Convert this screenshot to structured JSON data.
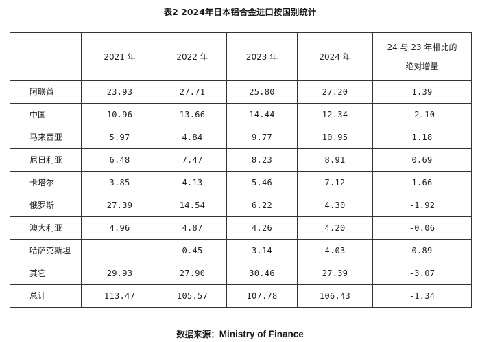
{
  "title": "表2 2024年日本铝合金进口按国别统计",
  "table": {
    "headers": [
      "",
      "2021 年",
      "2022 年",
      "2023 年",
      "2024 年"
    ],
    "change_header_line1": "24 与 23 年相比的",
    "change_header_line2": "绝对增量",
    "rows": [
      {
        "name": "阿联酋",
        "values": [
          "23.93",
          "27.71",
          "25.80",
          "27.20",
          "1.39"
        ]
      },
      {
        "name": "中国",
        "values": [
          "10.96",
          "13.66",
          "14.44",
          "12.34",
          "-2.10"
        ]
      },
      {
        "name": "马来西亚",
        "values": [
          "5.97",
          "4.84",
          "9.77",
          "10.95",
          "1.18"
        ]
      },
      {
        "name": "尼日利亚",
        "values": [
          "6.48",
          "7.47",
          "8.23",
          "8.91",
          "0.69"
        ]
      },
      {
        "name": "卡塔尔",
        "values": [
          "3.85",
          "4.13",
          "5.46",
          "7.12",
          "1.66"
        ]
      },
      {
        "name": "俄罗斯",
        "values": [
          "27.39",
          "14.54",
          "6.22",
          "4.30",
          "-1.92"
        ]
      },
      {
        "name": "澳大利亚",
        "values": [
          "4.96",
          "4.87",
          "4.26",
          "4.20",
          "-0.06"
        ]
      },
      {
        "name": "哈萨克斯坦",
        "values": [
          "-",
          "0.45",
          "3.14",
          "4.03",
          "0.89"
        ]
      },
      {
        "name": "其它",
        "values": [
          "29.93",
          "27.90",
          "30.46",
          "27.39",
          "-3.07"
        ]
      },
      {
        "name": "总计",
        "values": [
          "113.47",
          "105.57",
          "107.78",
          "106.43",
          "-1.34"
        ]
      }
    ]
  },
  "source": {
    "label": "数据来源：",
    "org": "Ministry of Finance"
  }
}
